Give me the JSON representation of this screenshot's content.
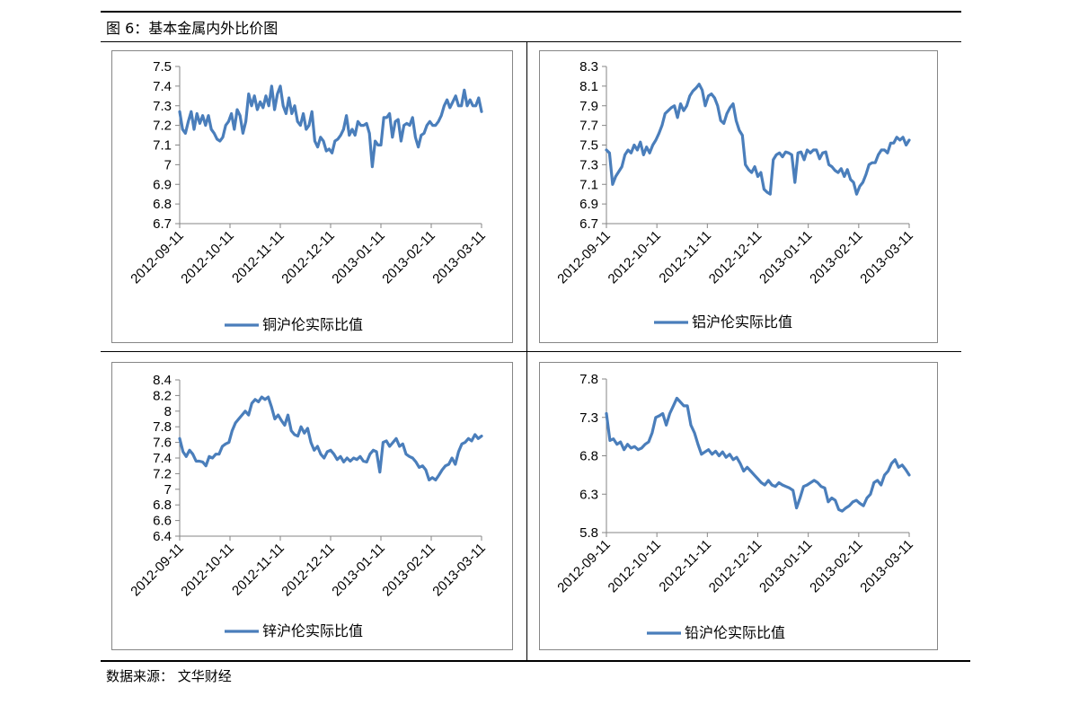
{
  "figure": {
    "title": "图 6：基本金属内外比价图",
    "source": "数据来源： 文华财经"
  },
  "colors": {
    "series": "#4a7ebb",
    "axis": "#868686"
  },
  "chart_data": [
    {
      "type": "line",
      "title": "",
      "legend": "铜沪伦实际比值",
      "legend_position": "bottom",
      "grid": false,
      "yticks": [
        "7.5",
        "7.4",
        "7.3",
        "7.2",
        "7.1",
        "7",
        "6.9",
        "6.8",
        "6.7"
      ],
      "ylim": [
        6.7,
        7.5
      ],
      "xticks": [
        "2012-09-11",
        "2012-10-11",
        "2012-11-11",
        "2012-12-11",
        "2013-01-11",
        "2013-02-11",
        "2013-03-11"
      ],
      "series": [
        {
          "values": [
            7.27,
            7.18,
            7.16,
            7.22,
            7.27,
            7.18,
            7.26,
            7.21,
            7.25,
            7.2,
            7.25,
            7.18,
            7.16,
            7.13,
            7.12,
            7.14,
            7.2,
            7.22,
            7.26,
            7.18,
            7.28,
            7.25,
            7.16,
            7.22,
            7.36,
            7.3,
            7.35,
            7.28,
            7.32,
            7.29,
            7.35,
            7.3,
            7.4,
            7.28,
            7.36,
            7.4,
            7.3,
            7.26,
            7.34,
            7.26,
            7.3,
            7.22,
            7.2,
            7.26,
            7.18,
            7.2,
            7.27,
            7.12,
            7.09,
            7.14,
            7.12,
            7.07,
            7.08,
            7.06,
            7.12,
            7.13,
            7.15,
            7.18,
            7.25,
            7.15,
            7.18,
            7.15,
            7.22,
            7.2,
            7.2,
            7.21,
            7.16,
            6.99,
            7.12,
            7.1,
            7.1,
            7.24,
            7.24,
            7.26,
            7.14,
            7.22,
            7.23,
            7.12,
            7.2,
            7.21,
            7.2,
            7.24,
            7.14,
            7.09,
            7.15,
            7.16,
            7.2,
            7.22,
            7.2,
            7.2,
            7.22,
            7.25,
            7.3,
            7.33,
            7.29,
            7.32,
            7.35,
            7.3,
            7.3,
            7.38,
            7.3,
            7.33,
            7.3,
            7.3,
            7.34,
            7.27
          ]
        }
      ]
    },
    {
      "type": "line",
      "title": "",
      "legend": "铝沪伦实际比值",
      "legend_position": "bottom",
      "grid": false,
      "yticks": [
        "8.3",
        "8.1",
        "7.9",
        "7.7",
        "7.5",
        "7.3",
        "7.1",
        "6.9",
        "6.7"
      ],
      "ylim": [
        6.7,
        8.3
      ],
      "xticks": [
        "2012-09-11",
        "2012-10-11",
        "2012-11-11",
        "2012-12-11",
        "2013-01-11",
        "2013-02-11",
        "2013-03-11"
      ],
      "series": [
        {
          "values": [
            7.45,
            7.42,
            7.1,
            7.18,
            7.23,
            7.28,
            7.4,
            7.45,
            7.42,
            7.5,
            7.45,
            7.53,
            7.4,
            7.48,
            7.42,
            7.5,
            7.55,
            7.62,
            7.7,
            7.82,
            7.85,
            7.88,
            7.9,
            7.78,
            7.92,
            7.85,
            7.9,
            8.0,
            8.05,
            8.08,
            8.12,
            8.06,
            7.9,
            8.0,
            8.02,
            7.98,
            7.9,
            7.75,
            7.72,
            7.82,
            7.88,
            7.92,
            7.75,
            7.65,
            7.6,
            7.3,
            7.25,
            7.22,
            7.28,
            7.18,
            7.22,
            7.05,
            7.02,
            7.0,
            7.35,
            7.4,
            7.42,
            7.38,
            7.43,
            7.42,
            7.4,
            7.12,
            7.42,
            7.43,
            7.35,
            7.45,
            7.42,
            7.45,
            7.45,
            7.36,
            7.42,
            7.43,
            7.3,
            7.28,
            7.24,
            7.22,
            7.26,
            7.18,
            7.25,
            7.15,
            7.12,
            7.0,
            7.08,
            7.12,
            7.2,
            7.3,
            7.32,
            7.32,
            7.4,
            7.45,
            7.45,
            7.42,
            7.52,
            7.52,
            7.58,
            7.55,
            7.58,
            7.5,
            7.55
          ]
        }
      ]
    },
    {
      "type": "line",
      "title": "",
      "legend": "锌沪伦实际比值",
      "legend_position": "bottom",
      "grid": false,
      "yticks": [
        "8.4",
        "8.2",
        "8",
        "7.8",
        "7.6",
        "7.4",
        "7.2",
        "7",
        "6.8",
        "6.6",
        "6.4"
      ],
      "ylim": [
        6.4,
        8.4
      ],
      "xticks": [
        "2012-09-11",
        "2012-10-11",
        "2012-11-11",
        "2012-12-11",
        "2013-01-11",
        "2013-02-11",
        "2013-03-11"
      ],
      "series": [
        {
          "values": [
            7.65,
            7.48,
            7.42,
            7.5,
            7.45,
            7.36,
            7.36,
            7.35,
            7.3,
            7.42,
            7.4,
            7.45,
            7.45,
            7.55,
            7.58,
            7.6,
            7.75,
            7.85,
            7.9,
            7.95,
            8.0,
            7.95,
            8.1,
            8.15,
            8.12,
            8.18,
            8.15,
            8.18,
            8.05,
            7.9,
            7.95,
            7.88,
            7.82,
            7.95,
            7.75,
            7.7,
            7.68,
            7.8,
            7.72,
            7.78,
            7.6,
            7.5,
            7.55,
            7.45,
            7.4,
            7.48,
            7.5,
            7.45,
            7.38,
            7.42,
            7.35,
            7.4,
            7.36,
            7.4,
            7.38,
            7.42,
            7.36,
            7.35,
            7.45,
            7.5,
            7.48,
            7.22,
            7.6,
            7.62,
            7.55,
            7.6,
            7.65,
            7.55,
            7.58,
            7.45,
            7.42,
            7.4,
            7.35,
            7.28,
            7.3,
            7.25,
            7.12,
            7.15,
            7.12,
            7.18,
            7.25,
            7.3,
            7.32,
            7.4,
            7.32,
            7.48,
            7.58,
            7.6,
            7.65,
            7.62,
            7.7,
            7.65,
            7.68
          ]
        }
      ]
    },
    {
      "type": "line",
      "title": "",
      "legend": "铅沪伦实际比值",
      "legend_position": "bottom",
      "grid": false,
      "yticks": [
        "7.8",
        "7.3",
        "6.8",
        "6.3",
        "5.8"
      ],
      "ylim": [
        5.8,
        7.8
      ],
      "xticks": [
        "2012-09-11",
        "2012-10-11",
        "2012-11-11",
        "2012-12-11",
        "2013-01-11",
        "2013-02-11",
        "2013-03-11"
      ],
      "series": [
        {
          "values": [
            7.35,
            7.0,
            7.02,
            6.95,
            6.98,
            6.88,
            6.95,
            6.9,
            6.92,
            6.88,
            6.9,
            6.95,
            6.98,
            7.1,
            7.3,
            7.32,
            7.35,
            7.2,
            7.35,
            7.45,
            7.55,
            7.5,
            7.45,
            7.45,
            7.2,
            7.1,
            6.95,
            6.82,
            6.85,
            6.88,
            6.82,
            6.86,
            6.8,
            6.85,
            6.78,
            6.82,
            6.75,
            6.78,
            6.7,
            6.6,
            6.65,
            6.6,
            6.55,
            6.5,
            6.45,
            6.42,
            6.48,
            6.42,
            6.4,
            6.45,
            6.42,
            6.4,
            6.38,
            6.35,
            6.12,
            6.25,
            6.4,
            6.42,
            6.45,
            6.48,
            6.45,
            6.4,
            6.38,
            6.2,
            6.25,
            6.22,
            6.1,
            6.08,
            6.12,
            6.15,
            6.2,
            6.22,
            6.18,
            6.15,
            6.25,
            6.3,
            6.45,
            6.48,
            6.42,
            6.55,
            6.6,
            6.7,
            6.75,
            6.65,
            6.68,
            6.62,
            6.55
          ]
        }
      ]
    }
  ]
}
